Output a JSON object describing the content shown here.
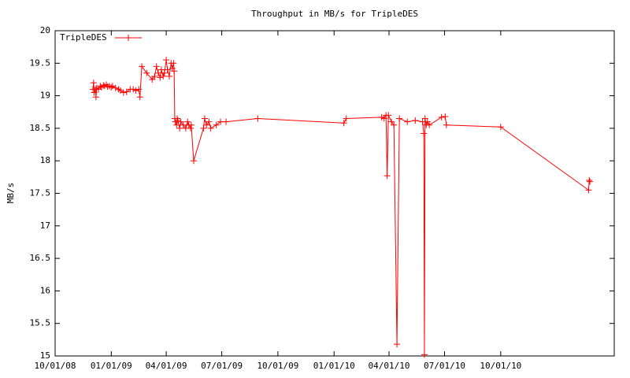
{
  "chart_data": {
    "type": "line",
    "title": "Throughput in MB/s for TripleDES",
    "y_label": "MB/s",
    "xlim": [
      "2008-10-01",
      "2011-04-05"
    ],
    "xticks": [
      {
        "value": "2008-10-01",
        "label": "10/01/08"
      },
      {
        "value": "2009-01-01",
        "label": "01/01/09"
      },
      {
        "value": "2009-04-01",
        "label": "04/01/09"
      },
      {
        "value": "2009-07-01",
        "label": "07/01/09"
      },
      {
        "value": "2009-10-01",
        "label": "10/01/09"
      },
      {
        "value": "2010-01-01",
        "label": "01/01/10"
      },
      {
        "value": "2010-04-01",
        "label": "04/01/10"
      },
      {
        "value": "2010-07-01",
        "label": "07/01/10"
      },
      {
        "value": "2010-10-01",
        "label": "10/01/10"
      }
    ],
    "ylim": [
      15,
      20
    ],
    "yticks": [
      15,
      15.5,
      16,
      16.5,
      17,
      17.5,
      18,
      18.5,
      19,
      19.5,
      20
    ],
    "legend": "top-left",
    "x": [
      "2008-12-02",
      "2008-12-03",
      "2008-12-04",
      "2008-12-06",
      "2008-12-07",
      "2008-12-08",
      "2008-12-11",
      "2008-12-14",
      "2008-12-16",
      "2008-12-19",
      "2008-12-21",
      "2008-12-24",
      "2008-12-26",
      "2008-12-29",
      "2009-01-01",
      "2009-01-03",
      "2009-01-08",
      "2009-01-13",
      "2009-01-16",
      "2009-01-21",
      "2009-01-26",
      "2009-02-01",
      "2009-02-06",
      "2009-02-10",
      "2009-02-15",
      "2009-02-17",
      "2009-02-20",
      "2009-02-28",
      "2009-03-09",
      "2009-03-13",
      "2009-03-16",
      "2009-03-19",
      "2009-03-22",
      "2009-03-24",
      "2009-03-27",
      "2009-03-29",
      "2009-04-01",
      "2009-04-03",
      "2009-04-06",
      "2009-04-09",
      "2009-04-11",
      "2009-04-13",
      "2009-04-14",
      "2009-04-15",
      "2009-04-16",
      "2009-04-18",
      "2009-04-19",
      "2009-04-20",
      "2009-04-23",
      "2009-04-25",
      "2009-04-29",
      "2009-05-03",
      "2009-05-06",
      "2009-05-08",
      "2009-05-11",
      "2009-05-12",
      "2009-05-16",
      "2009-06-01",
      "2009-06-03",
      "2009-06-06",
      "2009-06-10",
      "2009-06-13",
      "2009-06-22",
      "2009-06-29",
      "2009-07-08",
      "2009-08-29",
      "2010-01-17",
      "2010-01-21",
      "2010-03-20",
      "2010-03-24",
      "2010-03-27",
      "2010-03-29",
      "2010-03-31",
      "2010-04-05",
      "2010-04-09",
      "2010-04-14",
      "2010-04-18",
      "2010-05-01",
      "2010-05-14",
      "2010-05-26",
      "2010-05-28",
      "2010-05-29",
      "2010-05-30",
      "2010-06-01",
      "2010-06-03",
      "2010-06-06",
      "2010-06-26",
      "2010-07-02",
      "2010-07-04",
      "2010-10-01",
      "2011-02-22",
      "2011-02-23",
      "2011-02-24"
    ],
    "series": [
      {
        "name": "TripleDES",
        "color": "#ff0000",
        "values": [
          19.1,
          19.2,
          19.05,
          19.1,
          18.98,
          19.12,
          19.1,
          19.15,
          19.13,
          19.16,
          19.15,
          19.17,
          19.14,
          19.15,
          19.13,
          19.15,
          19.12,
          19.1,
          19.08,
          19.05,
          19.06,
          19.1,
          19.1,
          19.08,
          19.1,
          18.98,
          19.45,
          19.35,
          19.25,
          19.3,
          19.45,
          19.35,
          19.28,
          19.4,
          19.3,
          19.35,
          19.55,
          19.4,
          19.3,
          19.5,
          19.42,
          19.5,
          19.38,
          18.65,
          18.6,
          18.55,
          18.65,
          18.62,
          18.5,
          18.6,
          18.55,
          18.5,
          18.6,
          18.55,
          18.5,
          18.55,
          18.0,
          18.5,
          18.65,
          18.55,
          18.6,
          18.5,
          18.55,
          18.6,
          18.6,
          18.65,
          18.58,
          18.65,
          18.67,
          18.65,
          18.7,
          17.77,
          18.7,
          18.6,
          18.55,
          15.18,
          18.65,
          18.6,
          18.62,
          18.6,
          18.42,
          15.02,
          18.65,
          18.55,
          18.6,
          18.55,
          18.67,
          18.68,
          18.55,
          18.52,
          17.55,
          17.7,
          17.68
        ]
      }
    ]
  }
}
